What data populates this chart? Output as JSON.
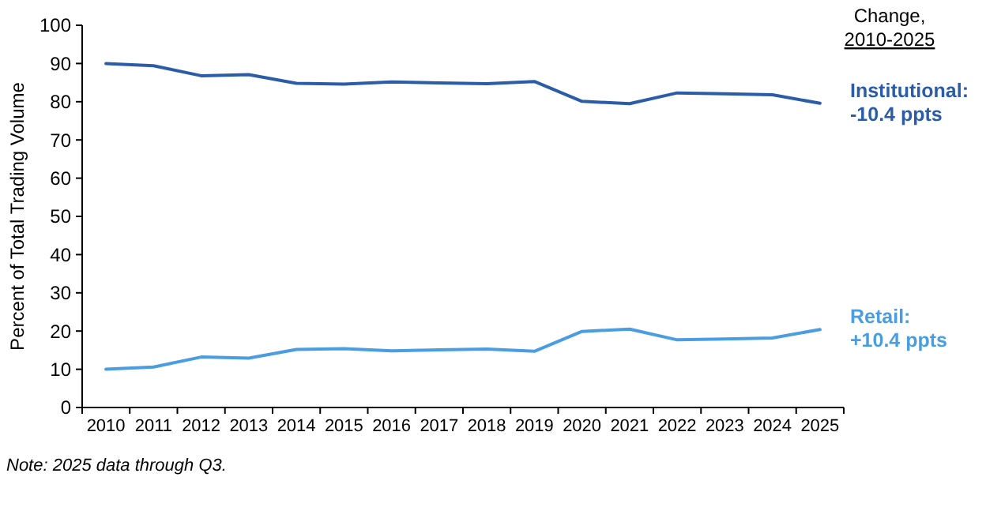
{
  "chart_data": {
    "type": "line",
    "ylabel": "Percent of Total Trading Volume",
    "legend_title": "Change, 2010-2025",
    "legend": "right",
    "grid": false,
    "marker": "none",
    "line_style": "solid",
    "categories": [
      "2010",
      "2011",
      "2012",
      "2013",
      "2014",
      "2015",
      "2016",
      "2017",
      "2018",
      "2019",
      "2020",
      "2021",
      "2022",
      "2023",
      "2024",
      "2025"
    ],
    "ylim": [
      0,
      100
    ],
    "yticks": [
      0,
      10,
      20,
      30,
      40,
      50,
      60,
      70,
      80,
      90,
      100
    ],
    "series": [
      {
        "name": "Institutional: -10.4 ppts",
        "color": "#2b5ca8",
        "values": [
          90,
          89.4,
          86.8,
          87.1,
          84.8,
          84.6,
          85.2,
          84.9,
          84.7,
          85.3,
          80.1,
          79.5,
          82.3,
          82.1,
          81.8,
          79.6
        ]
      },
      {
        "name": "Retail: +10.4 ppts",
        "color": "#4a9de0",
        "values": [
          10,
          10.6,
          13.2,
          12.9,
          15.2,
          15.4,
          14.8,
          15.1,
          15.3,
          14.7,
          19.9,
          20.5,
          17.7,
          17.9,
          18.2,
          20.4
        ]
      }
    ],
    "annotations": [
      "Note: 2025 data through Q3."
    ]
  }
}
